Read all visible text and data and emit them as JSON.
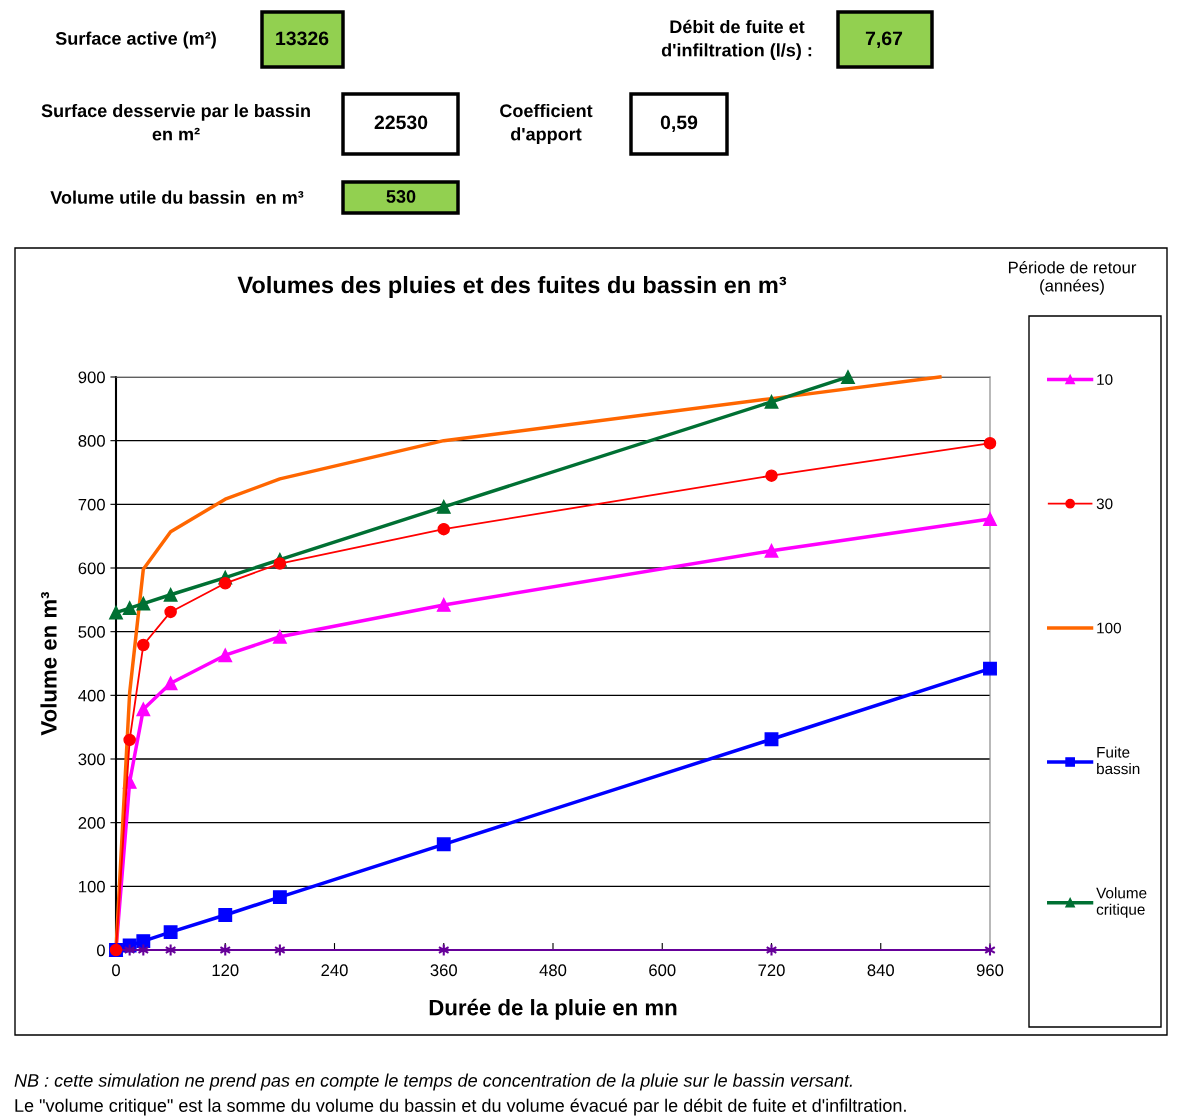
{
  "chart_data": {
    "type": "line",
    "title": "Volumes des pluies et des fuites du bassin en m³",
    "xlabel": "Durée de la pluie en mn",
    "ylabel": "Volume en m³",
    "legend_title": "Période de retour\n(années)",
    "xlim": [
      0,
      960
    ],
    "xticks": [
      0,
      120,
      240,
      360,
      480,
      600,
      720,
      840,
      960
    ],
    "ylim": [
      0,
      900
    ],
    "yticks": [
      0,
      100,
      200,
      300,
      400,
      500,
      600,
      700,
      800,
      900
    ],
    "grid": "y",
    "legend": "right",
    "series": [
      {
        "name": "10",
        "color": "#ff00ff",
        "marker": "triangle",
        "x": [
          0,
          15,
          30,
          60,
          120,
          180,
          360,
          720,
          960
        ],
        "values": [
          0,
          264,
          378,
          419,
          463,
          492,
          542,
          627,
          677
        ]
      },
      {
        "name": "30",
        "color": "#ff0000",
        "marker": "circle",
        "x": [
          0,
          15,
          30,
          60,
          120,
          180,
          360,
          720,
          960
        ],
        "values": [
          0,
          330,
          479,
          531,
          576,
          607,
          661,
          745,
          796
        ]
      },
      {
        "name": "100",
        "color": "#ff6600",
        "marker": "none",
        "x": [
          0,
          15,
          30,
          60,
          120,
          180,
          360,
          720,
          905
        ],
        "values": [
          0,
          404,
          598,
          657,
          708,
          740,
          800,
          866,
          900
        ]
      },
      {
        "name": "Fuite\nbassin",
        "color": "#0000ff",
        "marker": "square",
        "x": [
          0,
          15,
          30,
          60,
          120,
          180,
          360,
          720,
          960
        ],
        "values": [
          0,
          7,
          14,
          28,
          55,
          83,
          166,
          331,
          442
        ]
      },
      {
        "name": "Volume\ncritique",
        "color": "#007033",
        "marker": "triangle",
        "x": [
          0,
          15,
          30,
          60,
          120,
          180,
          360,
          720,
          804
        ],
        "values": [
          530,
          537,
          544,
          558,
          585,
          613,
          696,
          861,
          900
        ]
      },
      {
        "color": "#660099",
        "marker": "cross",
        "x": [
          0,
          15,
          30,
          60,
          120,
          180,
          360,
          720,
          960
        ],
        "values": [
          0,
          0,
          0,
          0,
          0,
          0,
          0,
          0,
          0
        ]
      }
    ],
    "annotations": [
      "Surface active (m²)",
      "13326",
      "Débit de fuite et\nd'infiltration (l/s) :",
      "7,67",
      "Surface desservie par le bassin\nen m²",
      "22530",
      "Coefficient\nd'apport",
      "0,59",
      "Volume utile du bassin  en m³",
      "530",
      "NB : cette simulation ne prend pas en compte le temps de concentration de la pluie sur le bassin versant.",
      "Le \"volume critique\" est la somme du volume du bassin et du volume évacué par le débit de fuite et d'infiltration."
    ]
  }
}
